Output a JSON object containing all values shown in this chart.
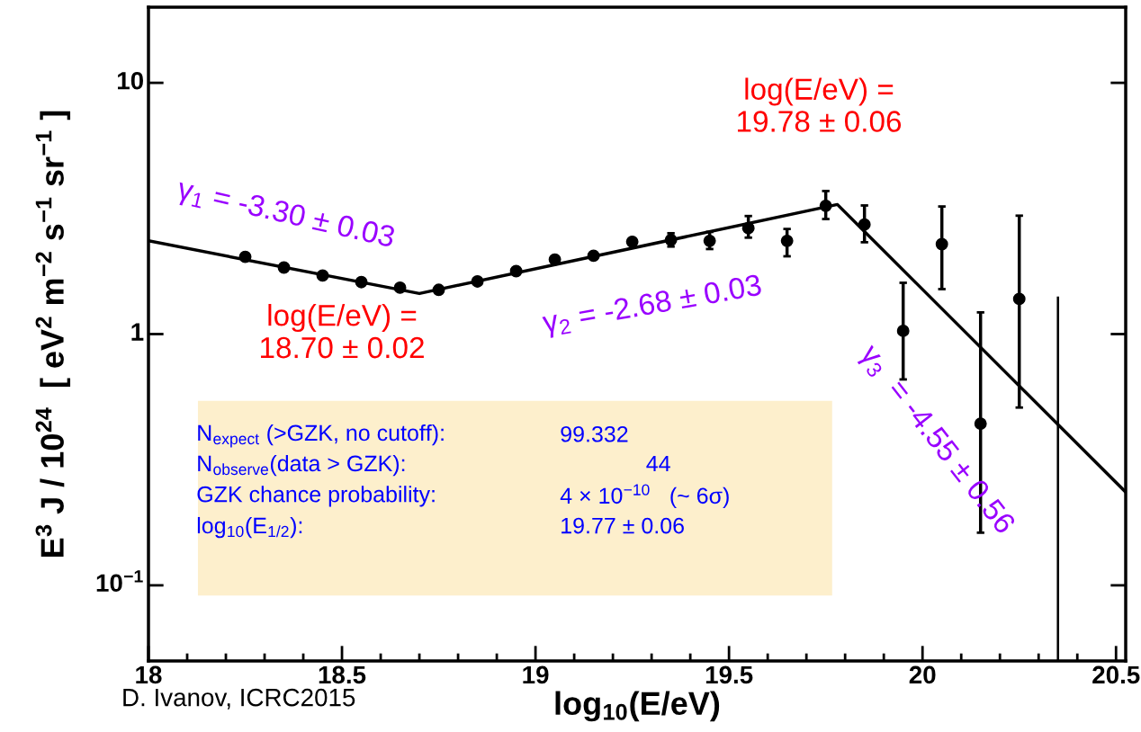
{
  "chart_data": {
    "type": "scatter",
    "xlabel": "log$_{10}$(E/eV)",
    "ylabel": "E$^{3}$ J / 10$^{24}$  [ eV$^{2}$ m$^{−2}$ s$^{−1}$ sr$^{−1}$ ]",
    "series": [
      {
        "color": "#000000",
        "marker": "circle",
        "x": [
          18.25,
          18.35,
          18.45,
          18.55,
          18.65,
          18.75,
          18.85,
          18.95,
          19.05,
          19.15,
          19.25,
          19.35,
          19.45,
          19.55,
          19.65,
          19.75,
          19.85,
          19.95,
          20.05,
          20.15,
          20.25
        ],
        "values": [
          2.03,
          1.84,
          1.71,
          1.61,
          1.53,
          1.5,
          1.62,
          1.78,
          1.98,
          2.05,
          2.33,
          2.37,
          2.35,
          2.64,
          2.35,
          3.24,
          2.73,
          1.03,
          2.28,
          0.44,
          1.38
        ],
        "errors": [
          null,
          null,
          null,
          null,
          null,
          null,
          null,
          null,
          null,
          null,
          null,
          [
            2.23,
            2.52
          ],
          [
            2.18,
            2.55
          ],
          [
            2.42,
            2.95
          ],
          [
            2.04,
            2.62
          ],
          [
            2.87,
            3.71
          ],
          [
            2.32,
            3.25
          ],
          [
            0.66,
            1.6
          ],
          [
            1.51,
            3.22
          ],
          [
            0.162,
            1.22
          ],
          [
            0.51,
            2.96
          ]
        ]
      },
      {
        "type": "bar",
        "color": "#000000",
        "x": [
          20.35
        ],
        "base": [
          0.05
        ],
        "values": [
          1.36
        ]
      },
      {
        "type": "line",
        "color": "#000000",
        "marker": "none",
        "line_style": "solid",
        "x": [
          18.0,
          18.7,
          19.78,
          20.525
        ],
        "values": [
          2.35,
          1.45,
          3.28,
          0.235
        ]
      }
    ],
    "log": "y",
    "xlim": [
      18.0,
      20.525
    ],
    "xticks": [
      18,
      18.5,
      19,
      19.5,
      20,
      20.5
    ],
    "ylim": [
      0.05,
      20
    ],
    "yticks": [
      {
        "value": 0.1,
        "label": "10$^{−1}$"
      },
      1,
      10
    ],
    "grid": false,
    "legend": false,
    "annotations": [
      "γ$_{1}$ = -3.30 ± 0.03",
      "log(E/eV) =\n18.70 ± 0.02",
      "γ$_{2}$ = -2.68 ± 0.03",
      "log(E/eV) =\n19.78 ± 0.06",
      "γ$_{3}$  = -4.55 ± 0.56",
      "N$_{expect}$ (>GZK, no cutoff):",
      "99.332",
      "N$_{observe}$(data > GZK):",
      "44",
      "GZK chance probability:",
      "4 × 10$^{−10}$   (~ 6σ)",
      "log$_{10}$(E$_{1/2}$):",
      "19.77 ± 0.06",
      "D. Ivanov, ICRC2015"
    ]
  }
}
